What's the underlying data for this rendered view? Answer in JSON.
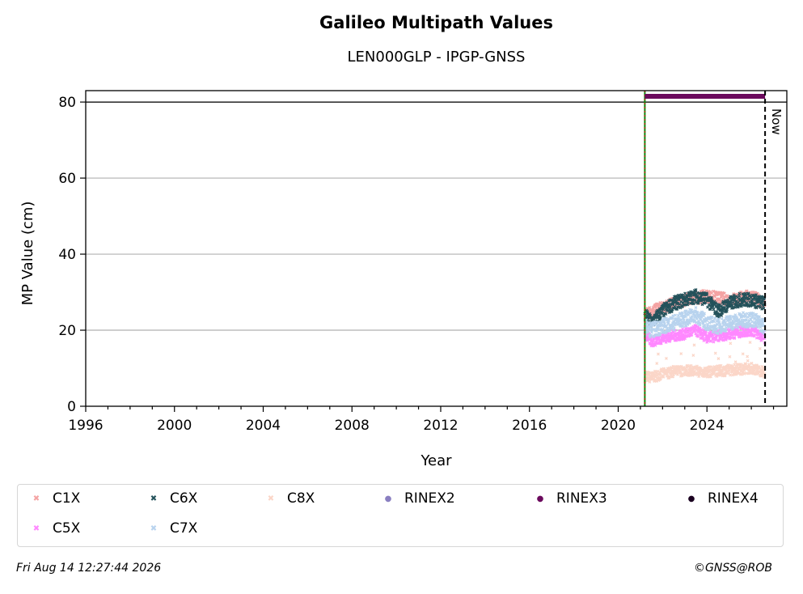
{
  "chart_data": {
    "type": "scatter",
    "title": "Galileo Multipath Values",
    "subtitle": "LEN000GLP - IPGP-GNSS",
    "xlabel": "Year",
    "ylabel": "MP Value (cm)",
    "xlim": [
      1996,
      2027.6
    ],
    "ylim": [
      0,
      83
    ],
    "x_ticks": [
      1996,
      2000,
      2004,
      2008,
      2012,
      2016,
      2020,
      2024
    ],
    "y_ticks": [
      0,
      20,
      40,
      60,
      80
    ],
    "grid": "horizontal",
    "hline": 80,
    "start_marker": 2021.2,
    "now_marker": {
      "x": 2026.62,
      "label": "Now"
    },
    "rinex_bar": {
      "name": "RINEX3",
      "y": 81.5,
      "from": 2021.2,
      "to": 2026.62
    },
    "series": [
      {
        "name": "C1X",
        "color": "#f4a3a3",
        "marker": "x",
        "start": 2021.2,
        "end": 2026.6,
        "points": [
          [
            2021.2,
            24
          ],
          [
            2022.0,
            26
          ],
          [
            2023.0,
            28
          ],
          [
            2024.0,
            29
          ],
          [
            2025.0,
            28
          ],
          [
            2026.0,
            29
          ],
          [
            2026.6,
            27
          ]
        ]
      },
      {
        "name": "C5X",
        "color": "#ff88ff",
        "marker": "x",
        "start": 2021.2,
        "end": 2026.6,
        "points": [
          [
            2021.2,
            19
          ],
          [
            2021.5,
            17
          ],
          [
            2022.0,
            18
          ],
          [
            2023.0,
            19
          ],
          [
            2023.5,
            20
          ],
          [
            2024.0,
            18
          ],
          [
            2025.0,
            19
          ],
          [
            2026.0,
            20
          ],
          [
            2026.6,
            18
          ]
        ]
      },
      {
        "name": "C6X",
        "color": "#24525b",
        "marker": "x",
        "start": 2021.2,
        "end": 2026.6,
        "points": [
          [
            2021.2,
            24
          ],
          [
            2021.5,
            22
          ],
          [
            2022.0,
            25
          ],
          [
            2022.5,
            27
          ],
          [
            2023.0,
            28
          ],
          [
            2023.5,
            29
          ],
          [
            2024.0,
            28
          ],
          [
            2024.5,
            25
          ],
          [
            2025.0,
            27
          ],
          [
            2025.5,
            28
          ],
          [
            2026.0,
            28
          ],
          [
            2026.6,
            27
          ]
        ]
      },
      {
        "name": "C7X",
        "color": "#b8d3ee",
        "marker": "x",
        "start": 2021.2,
        "end": 2026.6,
        "points": [
          [
            2021.2,
            21
          ],
          [
            2021.5,
            20
          ],
          [
            2022.0,
            21
          ],
          [
            2022.5,
            22
          ],
          [
            2023.0,
            23
          ],
          [
            2023.5,
            24
          ],
          [
            2024.0,
            22
          ],
          [
            2024.5,
            21
          ],
          [
            2025.0,
            22
          ],
          [
            2026.0,
            23
          ],
          [
            2026.6,
            21
          ]
        ]
      },
      {
        "name": "C8X",
        "color": "#fbd6c8",
        "marker": "x",
        "start": 2021.2,
        "end": 2026.6,
        "points": [
          [
            2021.2,
            8
          ],
          [
            2021.5,
            7.5
          ],
          [
            2022.0,
            8.5
          ],
          [
            2023.0,
            9.5
          ],
          [
            2024.0,
            9
          ],
          [
            2025.0,
            9.5
          ],
          [
            2026.0,
            10
          ],
          [
            2026.6,
            9
          ]
        ]
      },
      {
        "name": "RINEX2",
        "color": "#8a7fc1",
        "marker": "o",
        "points": []
      },
      {
        "name": "RINEX3",
        "color": "#6b0a5d",
        "marker": "o",
        "points": []
      },
      {
        "name": "RINEX4",
        "color": "#1a0020",
        "marker": "o",
        "points": []
      }
    ]
  },
  "legend": {
    "items": [
      {
        "label": "C1X",
        "color": "#f4a3a3",
        "glyph": "✖"
      },
      {
        "label": "C6X",
        "color": "#24525b",
        "glyph": "✖"
      },
      {
        "label": "C8X",
        "color": "#fbd6c8",
        "glyph": "✖"
      },
      {
        "label": "RINEX2",
        "color": "#8a7fc1",
        "glyph": "●"
      },
      {
        "label": "RINEX3",
        "color": "#6b0a5d",
        "glyph": "●"
      },
      {
        "label": "RINEX4",
        "color": "#1a0020",
        "glyph": "●"
      },
      {
        "label": "C5X",
        "color": "#ff88ff",
        "glyph": "✖"
      },
      {
        "label": "C7X",
        "color": "#b8d3ee",
        "glyph": "✖"
      }
    ]
  },
  "footer": {
    "timestamp": "Fri Aug 14 12:27:44 2026",
    "copyright": "©GNSS@ROB"
  }
}
